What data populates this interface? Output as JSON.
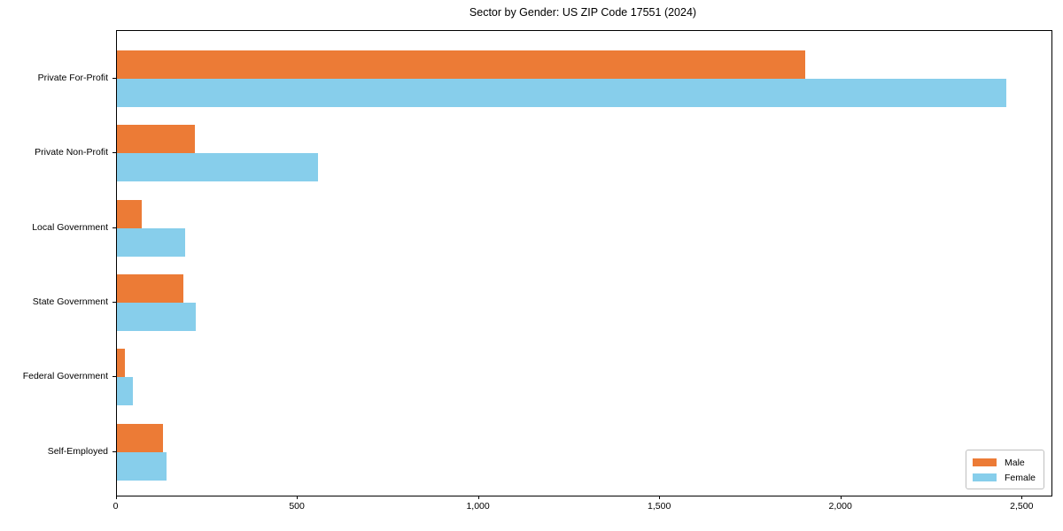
{
  "chart_data": {
    "type": "bar",
    "orientation": "horizontal",
    "title": "Sector by Gender: US ZIP Code 17551 (2024)",
    "categories": [
      "Private For-Profit",
      "Private Non-Profit",
      "Local Government",
      "State Government",
      "Federal Government",
      "Self-Employed"
    ],
    "series": [
      {
        "name": "Male",
        "color": "#ec7b36",
        "values": [
          1900,
          216,
          70,
          185,
          23,
          127
        ]
      },
      {
        "name": "Female",
        "color": "#87ceeb",
        "values": [
          2455,
          555,
          189,
          219,
          44,
          138
        ]
      }
    ],
    "xlabel": "",
    "ylabel": "",
    "xlim": [
      0,
      2580
    ],
    "x_ticks": [
      {
        "value": 0,
        "label": "0"
      },
      {
        "value": 500,
        "label": "500"
      },
      {
        "value": 1000,
        "label": "1,000"
      },
      {
        "value": 1500,
        "label": "1,500"
      },
      {
        "value": 2000,
        "label": "2,000"
      },
      {
        "value": 2500,
        "label": "2,500"
      }
    ],
    "grid": false,
    "legend_position": "lower right"
  }
}
